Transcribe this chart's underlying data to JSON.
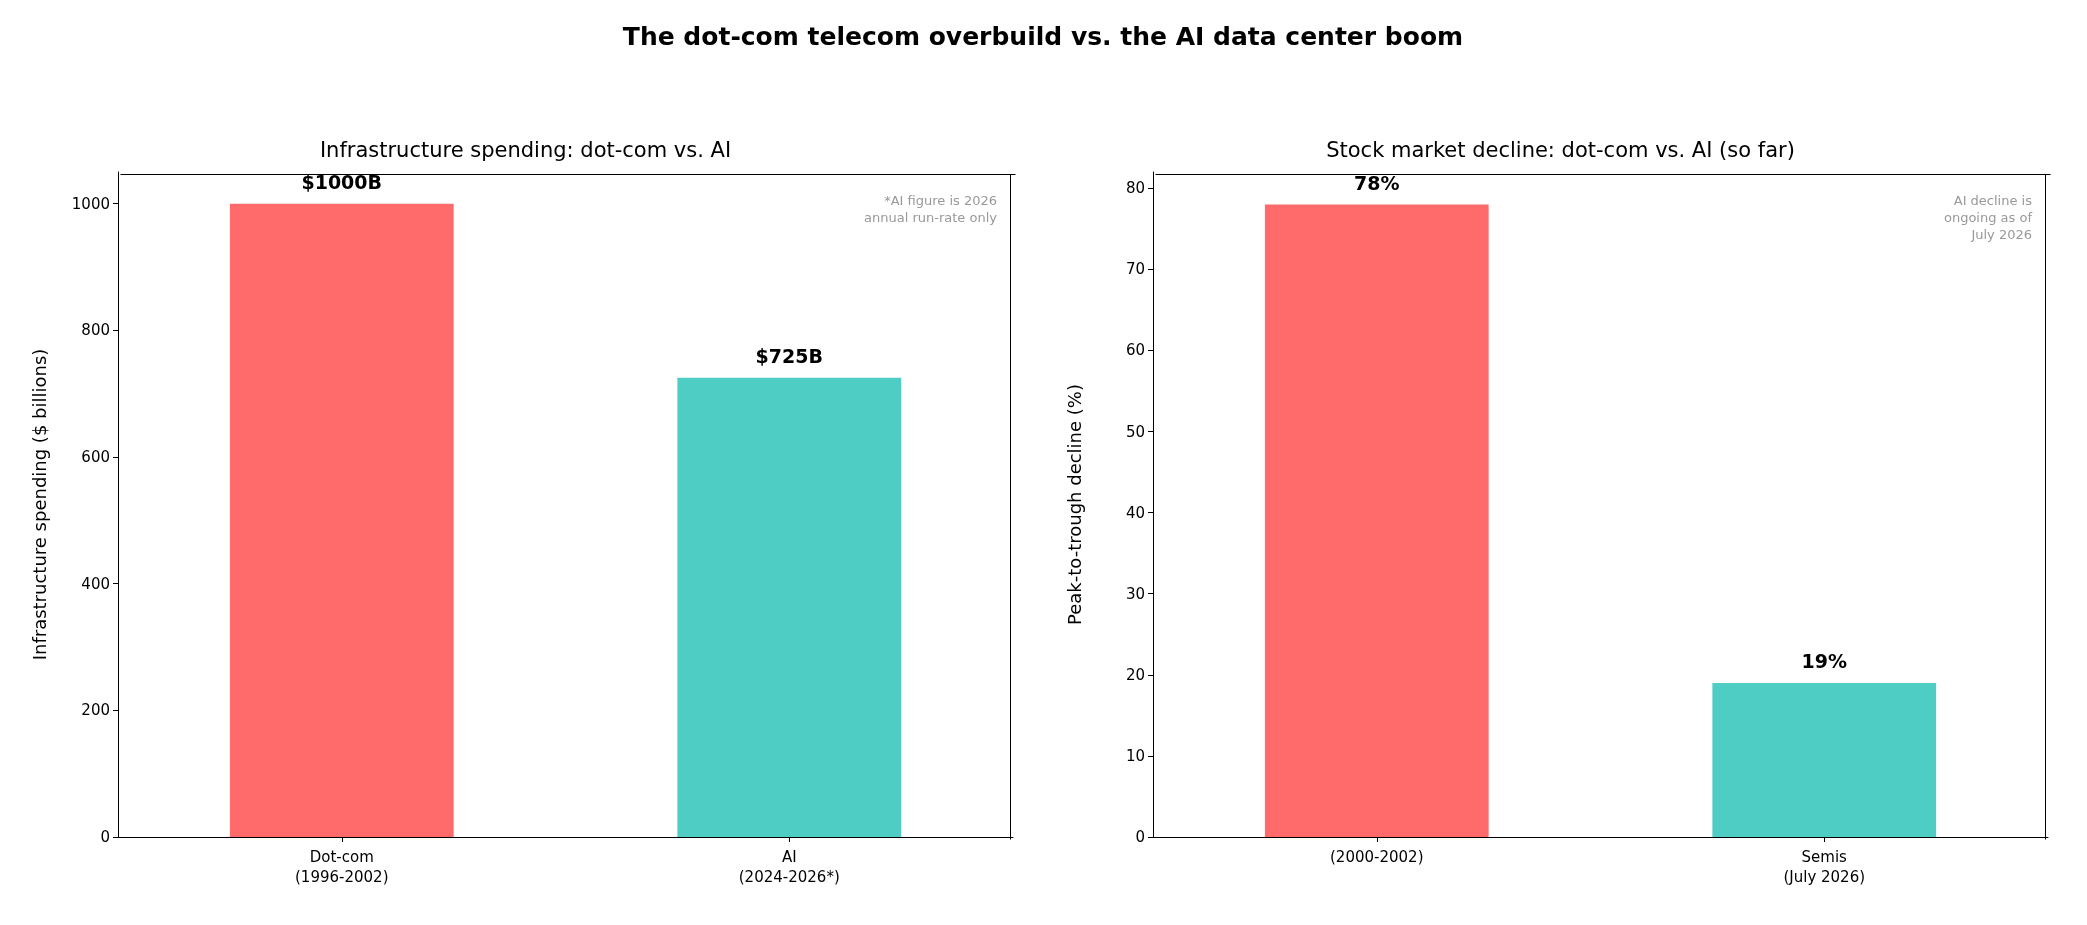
{
  "chart_data": [
    {
      "type": "bar",
      "title": "The dot-com telecom overbuild vs. the AI data center boom",
      "subtitle": "Infrastructure spending: dot-com vs. AI",
      "ylabel": "Infrastructure spending ($ billions)",
      "categories": [
        "Dot-com\n(1996-2002)",
        "AI\n(2024-2026*)"
      ],
      "values": [
        1000,
        725
      ],
      "colors": [
        "#ff6b6b",
        "#4ecdc4"
      ],
      "value_labels": [
        "$1000B",
        "$725B"
      ],
      "ylim": [
        0,
        1050
      ],
      "yticks": [
        0,
        200,
        400,
        600,
        800,
        1000
      ],
      "grid": false,
      "annotations": [
        "*AI figure is 2026\nannual run-rate only"
      ]
    },
    {
      "type": "bar",
      "subtitle": "Stock market decline: dot-com vs. AI (so far)",
      "ylabel": "Peak-to-trough decline (%)",
      "categories": [
        "(2000-2002)",
        "Semis\n(July 2026)"
      ],
      "values": [
        78,
        19
      ],
      "colors": [
        "#ff6b6b",
        "#4ecdc4"
      ],
      "value_labels": [
        "78%",
        "19%"
      ],
      "ylim": [
        0,
        82
      ],
      "yticks": [
        0,
        10,
        20,
        30,
        40,
        50,
        60,
        70,
        80
      ],
      "grid": false,
      "annotations": [
        "AI decline is\nongoing as of\nJuly 2026"
      ]
    }
  ]
}
